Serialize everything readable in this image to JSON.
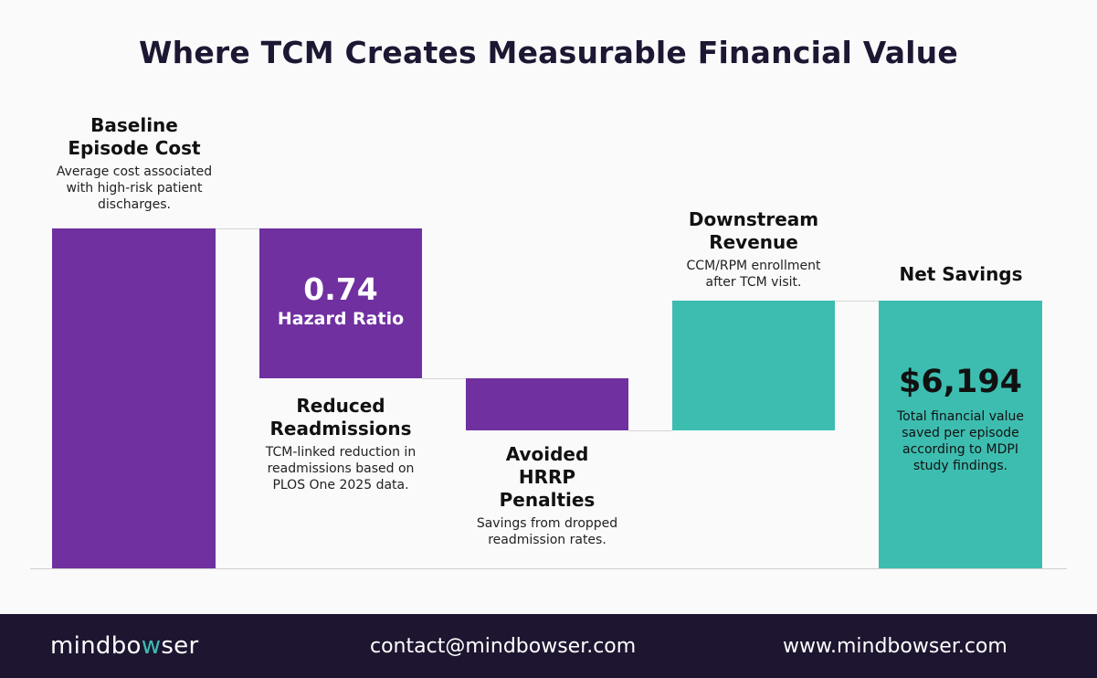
{
  "title": "Where TCM Creates Measurable Financial Value",
  "colors": {
    "reduction": "#7030a0",
    "gain": "#3dbdb0",
    "footer": "#1e1530",
    "title": "#1d1733"
  },
  "chart_data": {
    "type": "bar",
    "subtype": "waterfall",
    "title": "Where TCM Creates Measurable Financial Value",
    "categories": [
      "Baseline Episode Cost",
      "Reduced Readmissions",
      "Avoided HRRP Penalties",
      "Downstream Revenue",
      "Net Savings"
    ],
    "steps": [
      {
        "label_line1": "Baseline",
        "label_line2": "Episode Cost",
        "description": "Average cost associated with high-risk patient discharges.",
        "kind": "total",
        "color": "#7030a0"
      },
      {
        "label_line1": "Reduced",
        "label_line2": "Readmissions",
        "description": "TCM-linked reduction in readmissions based on PLOS One 2025 data.",
        "kind": "decrease",
        "color": "#7030a0",
        "bar_value": "0.74",
        "bar_caption": "Hazard Ratio"
      },
      {
        "label_line1": "Avoided",
        "label_line2": "HRRP",
        "label_line3": "Penalties",
        "description": "Savings from dropped readmission rates.",
        "kind": "decrease",
        "color": "#7030a0"
      },
      {
        "label_line1": "Downstream",
        "label_line2": "Revenue",
        "description": "CCM/RPM enrollment after TCM visit.",
        "kind": "increase",
        "color": "#3dbdb0"
      },
      {
        "label_line1": "Net Savings",
        "description": "Total financial value saved per episode according to MDPI study findings.",
        "kind": "total",
        "color": "#3dbdb0",
        "bar_value": "$6,194"
      }
    ],
    "grid": false,
    "legend": "none"
  },
  "footer": {
    "logo_part1": "mindbo",
    "logo_w": "w",
    "logo_part2": "ser",
    "email": "contact@mindbowser.com",
    "website": "www.mindbowser.com"
  }
}
